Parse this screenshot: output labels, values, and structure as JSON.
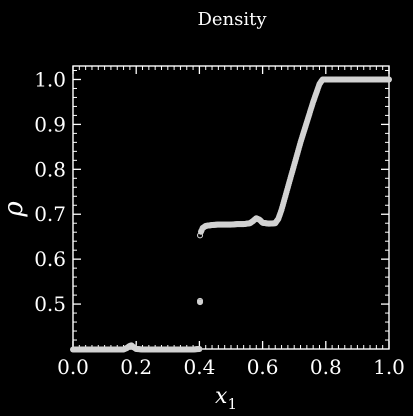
{
  "chart_data": {
    "type": "scatter",
    "title": "Density",
    "xlabel": "x",
    "xlabel_subscript": "1",
    "ylabel": "ρ",
    "xlim": [
      0.0,
      1.0
    ],
    "ylim": [
      0.4,
      1.03
    ],
    "xticks": [
      "0.0",
      "0.2",
      "0.4",
      "0.6",
      "0.8",
      "1.0"
    ],
    "yticks": [
      "0.5",
      "0.6",
      "0.7",
      "0.8",
      "0.9",
      "1.0"
    ],
    "grid": false,
    "marker": "circle",
    "colors": {
      "background": "#000000",
      "axes": "#ffffff",
      "points": "#d2d2d2"
    },
    "series": [
      {
        "x": [
          0.0,
          0.02,
          0.04,
          0.06,
          0.08,
          0.1,
          0.12,
          0.14,
          0.16,
          0.17,
          0.18,
          0.185,
          0.19,
          0.2,
          0.22,
          0.24,
          0.26,
          0.28,
          0.3,
          0.32,
          0.34,
          0.36,
          0.38,
          0.4,
          0.405,
          0.41,
          0.42,
          0.44,
          0.46,
          0.48,
          0.5,
          0.52,
          0.54,
          0.56,
          0.57,
          0.58,
          0.59,
          0.6,
          0.62,
          0.64,
          0.65,
          0.66,
          0.68,
          0.7,
          0.72,
          0.74,
          0.76,
          0.78,
          0.79,
          0.8,
          0.82,
          0.84,
          0.86,
          0.88,
          0.9,
          0.92,
          0.94,
          0.96,
          0.98,
          1.0
        ],
        "y": [
          0.399,
          0.399,
          0.399,
          0.399,
          0.399,
          0.399,
          0.399,
          0.399,
          0.399,
          0.402,
          0.407,
          0.408,
          0.405,
          0.4,
          0.399,
          0.399,
          0.399,
          0.399,
          0.399,
          0.399,
          0.399,
          0.399,
          0.399,
          0.4,
          0.661,
          0.669,
          0.674,
          0.676,
          0.677,
          0.677,
          0.677,
          0.678,
          0.678,
          0.68,
          0.685,
          0.691,
          0.688,
          0.681,
          0.679,
          0.68,
          0.69,
          0.71,
          0.76,
          0.81,
          0.86,
          0.905,
          0.95,
          0.99,
          1.0,
          1.0,
          1.0,
          1.0,
          1.0,
          1.0,
          1.0,
          1.0,
          1.0,
          1.0,
          1.0,
          1.0
        ]
      },
      {
        "x": [
          0.402,
          0.402
        ],
        "y": [
          0.653,
          0.507
        ]
      }
    ]
  }
}
